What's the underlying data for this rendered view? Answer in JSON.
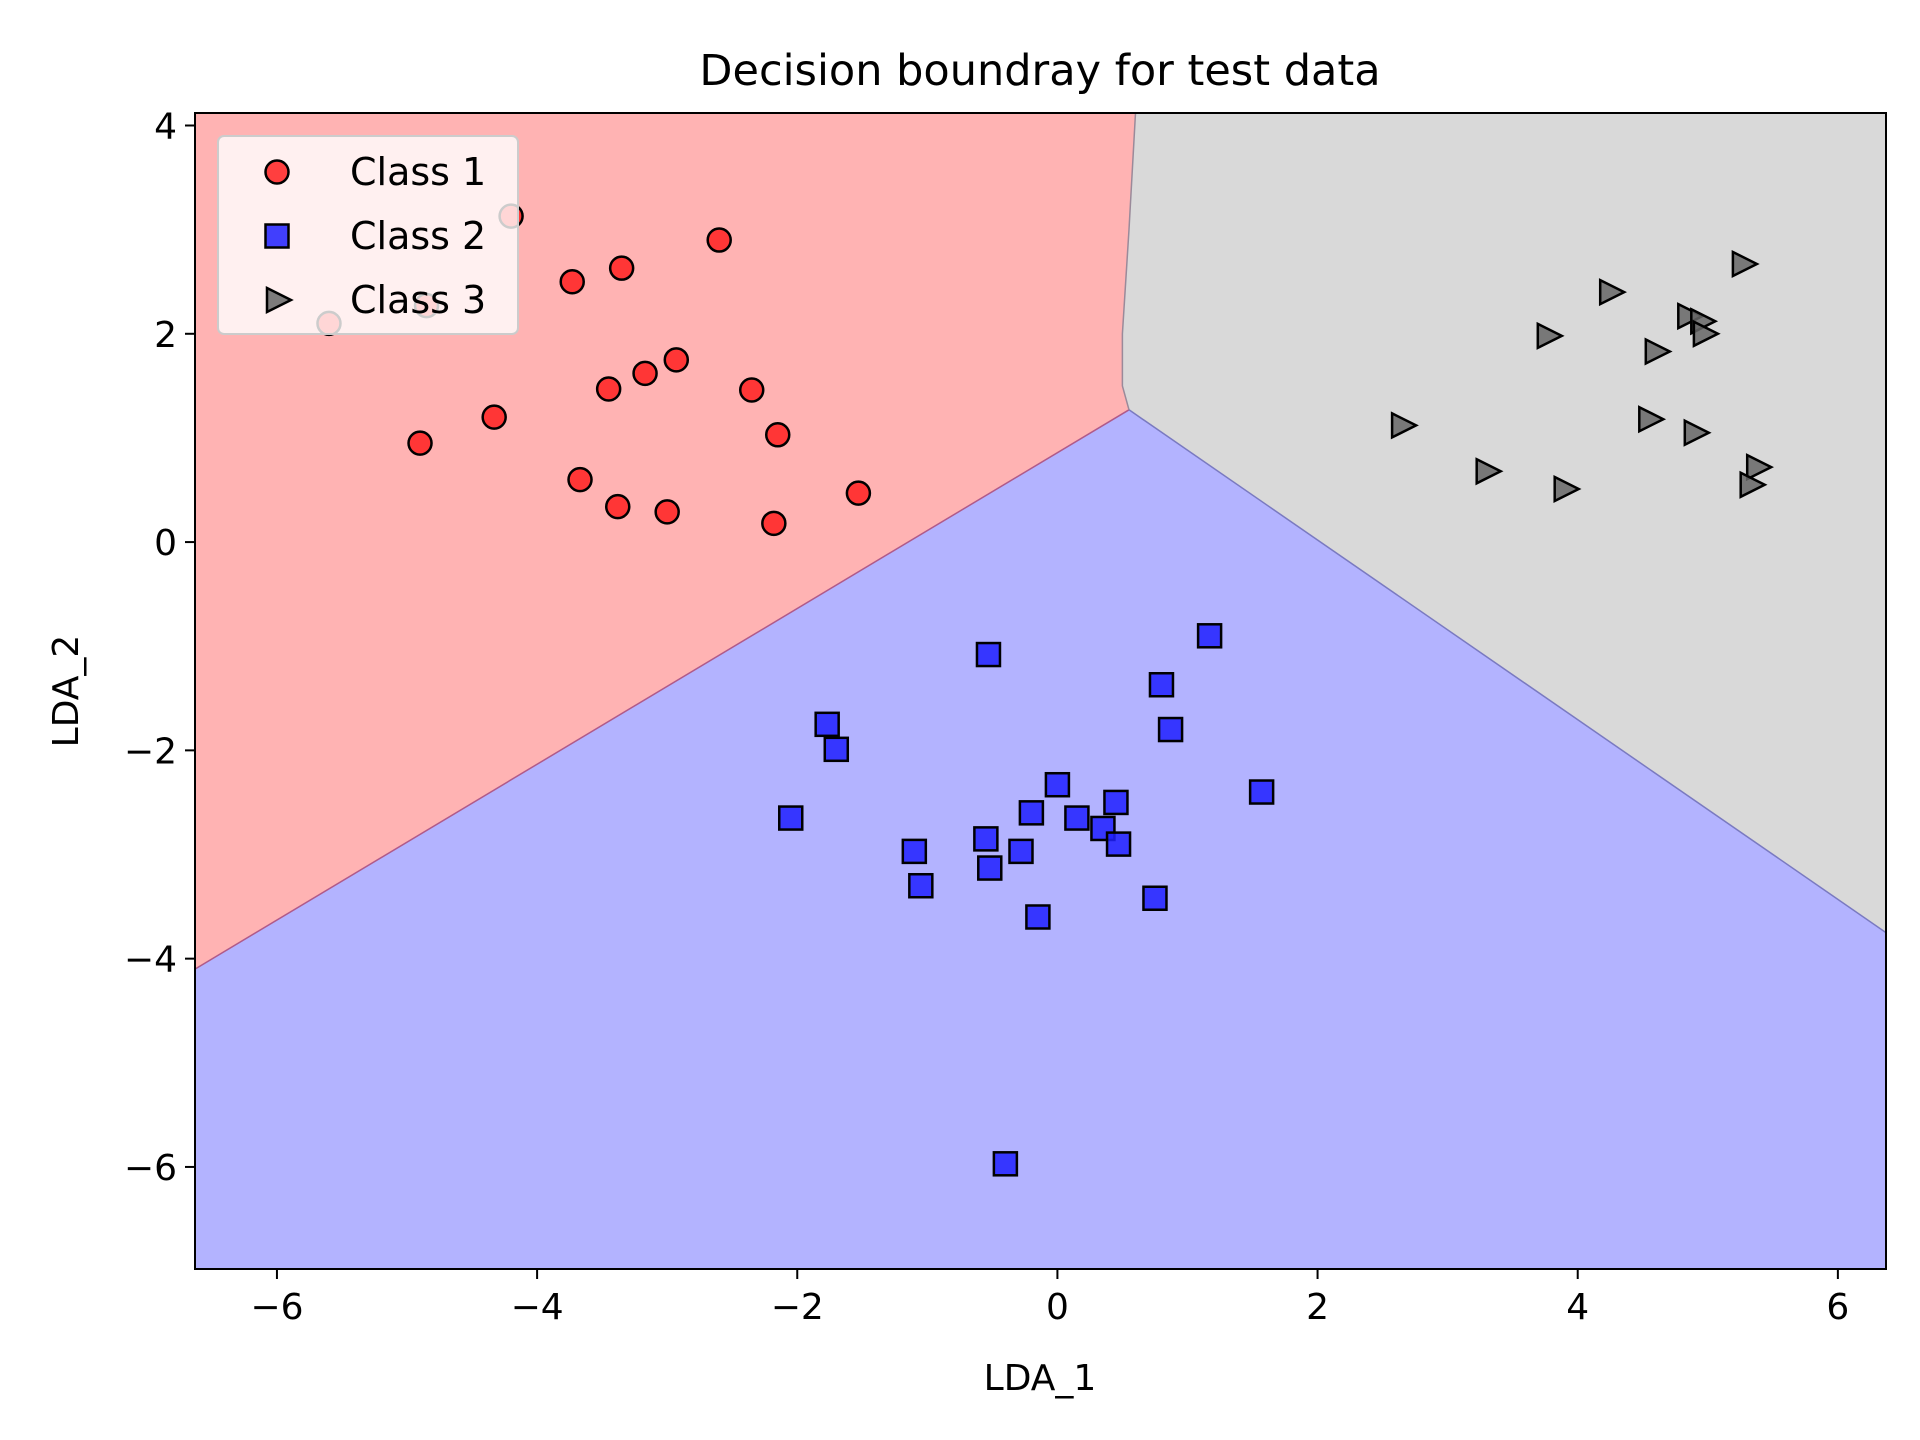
{
  "chart_data": {
    "type": "scatter",
    "title": "Decision boundray for test data",
    "xlabel": "LDA_1",
    "ylabel": "LDA_2",
    "xlim": [
      -6.63,
      6.37
    ],
    "ylim": [
      -6.98,
      4.12
    ],
    "xticks": [
      -6,
      -4,
      -2,
      0,
      2,
      4,
      6
    ],
    "yticks": [
      4,
      2,
      0,
      -2,
      -4,
      -6
    ],
    "xtick_labels": [
      "−6",
      "−4",
      "−2",
      "0",
      "2",
      "4",
      "6"
    ],
    "ytick_labels": [
      "4",
      "2",
      "0",
      "−2",
      "−4",
      "−6"
    ],
    "grid": false,
    "legend_position": "top-left",
    "regions": [
      {
        "class": "Class 1",
        "color": "#ffb3b3"
      },
      {
        "class": "Class 2",
        "color": "#b3b3ff"
      },
      {
        "class": "Class 3",
        "color": "#d9d9d9"
      }
    ],
    "series": [
      {
        "name": "Class 1",
        "marker": "circle",
        "color": "#ff2020",
        "points": [
          [
            -4.2,
            3.13
          ],
          [
            -2.6,
            2.9
          ],
          [
            -3.35,
            2.63
          ],
          [
            -3.73,
            2.5
          ],
          [
            -4.85,
            2.27
          ],
          [
            -5.6,
            2.1
          ],
          [
            -2.93,
            1.75
          ],
          [
            -3.17,
            1.62
          ],
          [
            -3.45,
            1.47
          ],
          [
            -2.35,
            1.46
          ],
          [
            -4.33,
            1.2
          ],
          [
            -2.15,
            1.03
          ],
          [
            -4.9,
            0.95
          ],
          [
            -3.67,
            0.6
          ],
          [
            -1.53,
            0.47
          ],
          [
            -3.38,
            0.34
          ],
          [
            -3.0,
            0.29
          ],
          [
            -2.18,
            0.18
          ]
        ]
      },
      {
        "name": "Class 2",
        "marker": "square",
        "color": "#2020ff",
        "points": [
          [
            1.17,
            -0.9
          ],
          [
            -0.53,
            -1.08
          ],
          [
            0.8,
            -1.37
          ],
          [
            -1.77,
            -1.75
          ],
          [
            0.87,
            -1.8
          ],
          [
            -1.7,
            -1.99
          ],
          [
            0.0,
            -2.33
          ],
          [
            1.57,
            -2.4
          ],
          [
            0.45,
            -2.5
          ],
          [
            -0.2,
            -2.6
          ],
          [
            0.15,
            -2.65
          ],
          [
            -2.05,
            -2.65
          ],
          [
            0.35,
            -2.75
          ],
          [
            -0.55,
            -2.85
          ],
          [
            0.47,
            -2.9
          ],
          [
            -1.1,
            -2.97
          ],
          [
            -0.28,
            -2.97
          ],
          [
            -0.52,
            -3.13
          ],
          [
            -1.05,
            -3.3
          ],
          [
            0.75,
            -3.42
          ],
          [
            -0.15,
            -3.6
          ],
          [
            -0.4,
            -5.97
          ]
        ]
      },
      {
        "name": "Class 3",
        "marker": "triangle-right",
        "color": "#666666",
        "points": [
          [
            5.27,
            2.67
          ],
          [
            4.25,
            2.4
          ],
          [
            4.85,
            2.17
          ],
          [
            4.95,
            2.12
          ],
          [
            3.77,
            1.98
          ],
          [
            4.97,
            2.0
          ],
          [
            4.6,
            1.83
          ],
          [
            4.55,
            1.18
          ],
          [
            2.65,
            1.12
          ],
          [
            4.9,
            1.05
          ],
          [
            5.38,
            0.72
          ],
          [
            3.3,
            0.68
          ],
          [
            5.33,
            0.55
          ],
          [
            3.9,
            0.51
          ]
        ]
      }
    ]
  }
}
